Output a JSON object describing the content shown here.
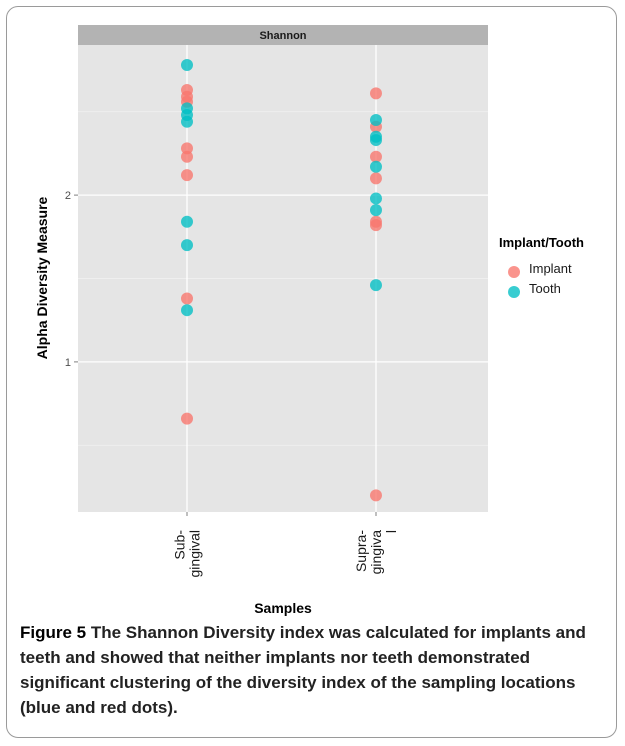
{
  "chart_data": {
    "type": "scatter",
    "facet_title": "Shannon",
    "xlabel": "Samples",
    "ylabel": "Alpha Diversity Measure",
    "categories": [
      "Sub-\ngingival",
      "Supra-\ngingiva\nl"
    ],
    "ylim": [
      0.1,
      2.9
    ],
    "yticks": [
      1,
      2
    ],
    "grid": true,
    "legend": {
      "title": "Implant/Tooth",
      "placement": "right",
      "entries": [
        {
          "name": "Implant",
          "color": "#F8766D"
        },
        {
          "name": "Tooth",
          "color": "#00BFC4"
        }
      ]
    },
    "series": [
      {
        "name": "Implant",
        "color": "#F8766D",
        "points": [
          {
            "x": "Sub-\ngingival",
            "y": 2.63
          },
          {
            "x": "Sub-\ngingival",
            "y": 2.59
          },
          {
            "x": "Sub-\ngingival",
            "y": 2.56
          },
          {
            "x": "Sub-\ngingival",
            "y": 2.28
          },
          {
            "x": "Sub-\ngingival",
            "y": 2.23
          },
          {
            "x": "Sub-\ngingival",
            "y": 2.12
          },
          {
            "x": "Sub-\ngingival",
            "y": 1.38
          },
          {
            "x": "Sub-\ngingival",
            "y": 0.66
          },
          {
            "x": "Supra-\ngingiva\nl",
            "y": 2.61
          },
          {
            "x": "Supra-\ngingiva\nl",
            "y": 2.41
          },
          {
            "x": "Supra-\ngingiva\nl",
            "y": 2.23
          },
          {
            "x": "Supra-\ngingiva\nl",
            "y": 2.1
          },
          {
            "x": "Supra-\ngingiva\nl",
            "y": 1.84
          },
          {
            "x": "Supra-\ngingiva\nl",
            "y": 1.82
          },
          {
            "x": "Supra-\ngingiva\nl",
            "y": 0.2
          }
        ]
      },
      {
        "name": "Tooth",
        "color": "#00BFC4",
        "points": [
          {
            "x": "Sub-\ngingival",
            "y": 2.78
          },
          {
            "x": "Sub-\ngingival",
            "y": 2.52
          },
          {
            "x": "Sub-\ngingival",
            "y": 2.48
          },
          {
            "x": "Sub-\ngingival",
            "y": 2.44
          },
          {
            "x": "Sub-\ngingival",
            "y": 1.84
          },
          {
            "x": "Sub-\ngingival",
            "y": 1.7
          },
          {
            "x": "Sub-\ngingival",
            "y": 1.31
          },
          {
            "x": "Supra-\ngingiva\nl",
            "y": 2.45
          },
          {
            "x": "Supra-\ngingiva\nl",
            "y": 2.35
          },
          {
            "x": "Supra-\ngingiva\nl",
            "y": 2.33
          },
          {
            "x": "Supra-\ngingiva\nl",
            "y": 2.17
          },
          {
            "x": "Supra-\ngingiva\nl",
            "y": 1.98
          },
          {
            "x": "Supra-\ngingiva\nl",
            "y": 1.91
          },
          {
            "x": "Supra-\ngingiva\nl",
            "y": 1.46
          }
        ]
      }
    ]
  },
  "caption": {
    "label": "Figure 5",
    "text": "The Shannon Diversity index was calculated for implants and teeth and showed that neither implants nor teeth demonstrated significant clustering of the diversity index of the sampling locations (blue and red dots)."
  }
}
